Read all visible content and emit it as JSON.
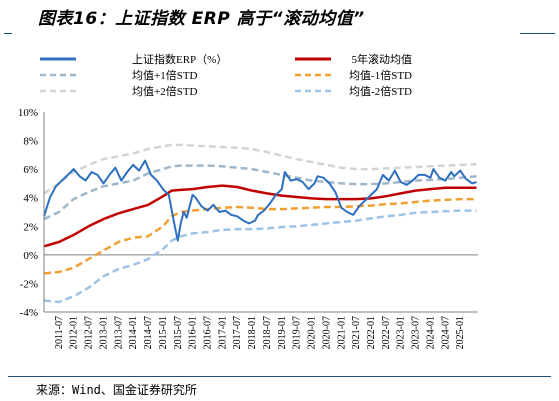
{
  "title": "图表16：上证指数 ERP 高于“滚动均值”",
  "source": "来源：Wind、国金证券研究所",
  "chart_data": {
    "type": "line",
    "yticks": [
      "10%",
      "8%",
      "6%",
      "4%",
      "2%",
      "0%",
      "-2%",
      "-4%"
    ],
    "ylim": [
      -4,
      10
    ],
    "xlim": [
      2011.0,
      2025.6
    ],
    "xticks": [
      "2011-07",
      "2012-01",
      "2012-07",
      "2013-01",
      "2013-07",
      "2014-01",
      "2014-07",
      "2015-01",
      "2015-07",
      "2016-01",
      "2016-07",
      "2017-01",
      "2017-07",
      "2018-01",
      "2018-07",
      "2019-01",
      "2019-07",
      "2020-01",
      "2020-07",
      "2021-01",
      "2021-07",
      "2022-01",
      "2022-07",
      "2023-01",
      "2023-07",
      "2024-01",
      "2024-07",
      "2025-01"
    ],
    "legend": {
      "placement": "top",
      "entries": [
        {
          "label": "上证指数ERP（%）",
          "series": "erp"
        },
        {
          "label": "5年滚动均值",
          "series": "mean"
        },
        {
          "label": "均值+1倍STD",
          "series": "plus1"
        },
        {
          "label": "均值-1倍STD",
          "series": "minus1"
        },
        {
          "label": "均值+2倍STD",
          "series": "plus2"
        },
        {
          "label": "均值-2倍STD",
          "series": "minus2"
        }
      ]
    },
    "series": [
      {
        "name": "上证指数ERP（%）",
        "key": "erp",
        "color": "#2e6fc0",
        "style": "solid",
        "x": [
          2011.0,
          2011.2,
          2011.4,
          2011.6,
          2011.8,
          2012.0,
          2012.2,
          2012.4,
          2012.6,
          2012.8,
          2013.0,
          2013.2,
          2013.4,
          2013.6,
          2013.8,
          2014.0,
          2014.2,
          2014.4,
          2014.6,
          2014.8,
          2015.0,
          2015.2,
          2015.4,
          2015.5,
          2015.6,
          2015.7,
          2015.8,
          2016.0,
          2016.1,
          2016.3,
          2016.5,
          2016.7,
          2016.9,
          2017.1,
          2017.3,
          2017.5,
          2017.7,
          2017.9,
          2018.1,
          2018.2,
          2018.4,
          2018.6,
          2018.8,
          2019.0,
          2019.1,
          2019.3,
          2019.5,
          2019.7,
          2019.9,
          2020.1,
          2020.2,
          2020.4,
          2020.6,
          2020.8,
          2021.0,
          2021.2,
          2021.4,
          2021.6,
          2021.8,
          2022.0,
          2022.2,
          2022.4,
          2022.6,
          2022.8,
          2023.0,
          2023.2,
          2023.4,
          2023.6,
          2023.8,
          2024.0,
          2024.1,
          2024.3,
          2024.5,
          2024.7,
          2024.8,
          2025.0,
          2025.2,
          2025.4,
          2025.55
        ],
        "y": [
          2.7,
          4.0,
          4.8,
          5.2,
          5.6,
          6.0,
          5.5,
          5.2,
          5.8,
          5.6,
          5.0,
          5.6,
          6.1,
          5.2,
          5.8,
          6.3,
          5.9,
          6.6,
          5.6,
          5.2,
          4.6,
          4.2,
          2.0,
          1.0,
          2.2,
          3.0,
          2.6,
          4.2,
          4.0,
          3.4,
          3.1,
          3.5,
          3.0,
          3.1,
          2.8,
          2.7,
          2.4,
          2.2,
          2.4,
          2.8,
          3.1,
          3.6,
          4.2,
          4.6,
          5.8,
          5.2,
          5.3,
          5.1,
          4.6,
          5.0,
          5.5,
          5.4,
          5.0,
          4.4,
          3.3,
          3.0,
          2.8,
          3.4,
          3.8,
          4.2,
          4.6,
          5.6,
          5.2,
          5.9,
          5.1,
          4.9,
          5.2,
          5.6,
          5.6,
          5.4,
          6.0,
          5.4,
          5.2,
          5.8,
          5.5,
          5.9,
          5.3,
          5.0,
          5.1
        ]
      },
      {
        "name": "5年滚动均值",
        "key": "mean",
        "color": "#c00000",
        "style": "solid",
        "x": [
          2011.0,
          2011.5,
          2012.0,
          2012.5,
          2013.0,
          2013.5,
          2014.0,
          2014.5,
          2015.0,
          2015.3,
          2015.6,
          2016.0,
          2016.5,
          2017.0,
          2017.5,
          2018.0,
          2018.5,
          2019.0,
          2019.5,
          2020.0,
          2020.5,
          2021.0,
          2021.5,
          2022.0,
          2022.5,
          2023.0,
          2023.5,
          2024.0,
          2024.5,
          2025.0,
          2025.55
        ],
        "y": [
          0.6,
          0.9,
          1.4,
          2.0,
          2.5,
          2.9,
          3.2,
          3.5,
          4.1,
          4.5,
          4.55,
          4.6,
          4.75,
          4.85,
          4.75,
          4.5,
          4.3,
          4.15,
          4.05,
          3.95,
          3.9,
          3.9,
          3.9,
          3.95,
          4.1,
          4.3,
          4.5,
          4.6,
          4.7,
          4.7,
          4.7
        ]
      },
      {
        "name": "均值+1倍STD",
        "key": "plus1",
        "color": "#9fb7cc",
        "style": "dashed",
        "x": [
          2011.0,
          2011.5,
          2012.0,
          2012.5,
          2013.0,
          2013.5,
          2014.0,
          2014.5,
          2015.0,
          2015.3,
          2015.6,
          2016.0,
          2016.5,
          2017.0,
          2017.5,
          2018.0,
          2018.5,
          2019.0,
          2019.5,
          2020.0,
          2020.5,
          2021.0,
          2021.5,
          2022.0,
          2022.5,
          2023.0,
          2023.5,
          2024.0,
          2024.5,
          2025.0,
          2025.55
        ],
        "y": [
          2.5,
          3.0,
          3.9,
          4.4,
          4.8,
          5.0,
          5.2,
          5.7,
          6.0,
          6.2,
          6.25,
          6.25,
          6.25,
          6.2,
          6.1,
          6.0,
          5.8,
          5.6,
          5.4,
          5.2,
          5.1,
          5.0,
          4.95,
          4.95,
          5.0,
          5.1,
          5.2,
          5.25,
          5.3,
          5.4,
          5.5
        ]
      },
      {
        "name": "均值-1倍STD",
        "key": "minus1",
        "color": "#f0a030",
        "style": "dashed",
        "x": [
          2011.0,
          2011.5,
          2012.0,
          2012.5,
          2013.0,
          2013.5,
          2014.0,
          2014.5,
          2015.0,
          2015.3,
          2015.6,
          2016.0,
          2016.5,
          2017.0,
          2017.5,
          2018.0,
          2018.5,
          2019.0,
          2019.5,
          2020.0,
          2020.5,
          2021.0,
          2021.5,
          2022.0,
          2022.5,
          2023.0,
          2023.5,
          2024.0,
          2024.5,
          2025.0,
          2025.55
        ],
        "y": [
          -1.3,
          -1.2,
          -0.9,
          -0.3,
          0.3,
          0.9,
          1.2,
          1.3,
          2.0,
          2.7,
          3.0,
          3.1,
          3.2,
          3.3,
          3.35,
          3.3,
          3.2,
          3.2,
          3.25,
          3.3,
          3.35,
          3.35,
          3.4,
          3.45,
          3.55,
          3.6,
          3.7,
          3.8,
          3.85,
          3.9,
          3.9
        ]
      },
      {
        "name": "均值+2倍STD",
        "key": "plus2",
        "color": "#d4d4d4",
        "style": "dashed",
        "x": [
          2011.0,
          2011.5,
          2012.0,
          2012.5,
          2013.0,
          2013.5,
          2014.0,
          2014.5,
          2015.0,
          2015.3,
          2015.6,
          2016.0,
          2016.5,
          2017.0,
          2017.5,
          2018.0,
          2018.5,
          2019.0,
          2019.5,
          2020.0,
          2020.5,
          2021.0,
          2021.5,
          2022.0,
          2022.5,
          2023.0,
          2023.5,
          2024.0,
          2024.5,
          2025.0,
          2025.55
        ],
        "y": [
          4.3,
          5.0,
          5.8,
          6.3,
          6.7,
          6.9,
          7.1,
          7.4,
          7.6,
          7.7,
          7.7,
          7.65,
          7.6,
          7.55,
          7.5,
          7.4,
          7.2,
          6.95,
          6.7,
          6.5,
          6.3,
          6.1,
          6.0,
          6.0,
          6.05,
          6.1,
          6.15,
          6.2,
          6.25,
          6.3,
          6.35
        ]
      },
      {
        "name": "均值-2倍STD",
        "key": "minus2",
        "color": "#9dc3e6",
        "style": "dashed",
        "x": [
          2011.0,
          2011.5,
          2012.0,
          2012.5,
          2013.0,
          2013.5,
          2014.0,
          2014.5,
          2015.0,
          2015.3,
          2015.6,
          2016.0,
          2016.5,
          2017.0,
          2017.5,
          2018.0,
          2018.5,
          2019.0,
          2019.5,
          2020.0,
          2020.5,
          2021.0,
          2021.5,
          2022.0,
          2022.5,
          2023.0,
          2023.5,
          2024.0,
          2024.5,
          2025.0,
          2025.55
        ],
        "y": [
          -3.2,
          -3.3,
          -2.9,
          -2.3,
          -1.5,
          -1.0,
          -0.7,
          -0.3,
          0.4,
          1.0,
          1.3,
          1.5,
          1.6,
          1.75,
          1.8,
          1.8,
          1.85,
          1.95,
          2.0,
          2.1,
          2.2,
          2.3,
          2.4,
          2.55,
          2.7,
          2.8,
          2.95,
          3.0,
          3.05,
          3.1,
          3.1
        ]
      }
    ]
  }
}
